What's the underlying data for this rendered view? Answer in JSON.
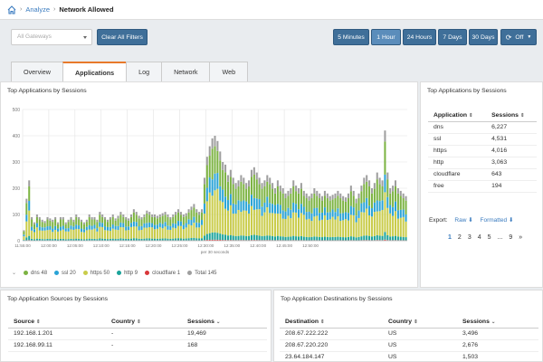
{
  "breadcrumb": {
    "items": [
      "Analyze"
    ],
    "current": "Network Allowed"
  },
  "filters": {
    "gateway_placeholder": "All Gateways",
    "clear_label": "Clear All Filters",
    "time_ranges": [
      "5 Minutes",
      "1 Hour",
      "24 Hours",
      "7 Days",
      "30 Days"
    ],
    "active_range": "1 Hour",
    "refresh_label": "Off"
  },
  "tabs": [
    "Overview",
    "Applications",
    "Log",
    "Network",
    "Web"
  ],
  "active_tab": "Applications",
  "colors": {
    "dns": "#7cb342",
    "ssl": "#29a3d6",
    "https": "#c9cc4a",
    "http": "#1aa39a",
    "cloudflare": "#d9373a",
    "total": "#9e9e9e",
    "accent": "#3f6f99",
    "tab_accent": "#e8792b"
  },
  "chart": {
    "title": "Top Applications by Sessions",
    "x_caption": "per 30 seconds",
    "legend": [
      {
        "key": "dns",
        "label": "dns 48"
      },
      {
        "key": "ssl",
        "label": "ssl 20"
      },
      {
        "key": "https",
        "label": "https 50"
      },
      {
        "key": "http",
        "label": "http 9"
      },
      {
        "key": "cloudflare",
        "label": "cloudflare 1"
      },
      {
        "key": "total",
        "label": "Total 145"
      }
    ]
  },
  "chart_data": {
    "type": "bar",
    "stacked": true,
    "ylim": [
      0,
      500
    ],
    "yticks": [
      0,
      100,
      200,
      300,
      400,
      500
    ],
    "xticks": [
      "11:55:00",
      "12:00:00",
      "12:05:00",
      "12:10:00",
      "12:15:00",
      "12:20:00",
      "12:25:00",
      "12:30:00",
      "12:35:00",
      "12:40:00",
      "12:45:00",
      "12:50:00"
    ],
    "x_start": "11:55:00",
    "interval_seconds": 30,
    "totals": [
      40,
      160,
      230,
      90,
      70,
      100,
      90,
      80,
      75,
      90,
      85,
      80,
      90,
      70,
      90,
      90,
      70,
      80,
      90,
      80,
      100,
      90,
      80,
      70,
      80,
      100,
      90,
      90,
      80,
      110,
      100,
      90,
      80,
      90,
      100,
      85,
      95,
      110,
      100,
      90,
      85,
      100,
      120,
      110,
      95,
      90,
      100,
      115,
      110,
      100,
      100,
      95,
      100,
      105,
      110,
      100,
      90,
      100,
      110,
      120,
      110,
      100,
      105,
      120,
      130,
      140,
      120,
      110,
      120,
      240,
      320,
      360,
      390,
      400,
      380,
      340,
      300,
      290,
      250,
      270,
      240,
      220,
      230,
      250,
      240,
      220,
      230,
      270,
      280,
      260,
      240,
      220,
      230,
      250,
      240,
      220,
      200,
      230,
      210,
      200,
      180,
      190,
      200,
      230,
      210,
      200,
      220,
      190,
      180,
      170,
      180,
      200,
      190,
      180,
      170,
      190,
      180,
      170,
      175,
      180,
      190,
      180,
      170,
      165,
      180,
      210,
      190,
      160,
      180,
      210,
      240,
      250,
      230,
      200,
      220,
      260,
      240,
      230,
      420,
      260,
      200,
      210,
      230,
      200,
      190,
      180,
      170
    ]
  },
  "apps_table": {
    "title": "Top Applications by Sessions",
    "headers": [
      "Application",
      "Sessions"
    ],
    "rows": [
      [
        "dns",
        "6,227"
      ],
      [
        "ssl",
        "4,531"
      ],
      [
        "https",
        "4,016"
      ],
      [
        "http",
        "3,063"
      ],
      [
        "cloudflare",
        "643"
      ],
      [
        "free",
        "194"
      ]
    ],
    "export_label": "Export:",
    "raw_label": "Raw",
    "formatted_label": "Formatted",
    "pages": [
      "1",
      "2",
      "3",
      "4",
      "5",
      "...",
      "9",
      "»"
    ]
  },
  "sources": {
    "title": "Top Application Sources by Sessions",
    "headers": [
      "Source",
      "Country",
      "Sessions"
    ],
    "rows": [
      [
        "192.168.1.201",
        "-",
        "19,469"
      ],
      [
        "192.168.99.11",
        "-",
        "168"
      ]
    ]
  },
  "destinations": {
    "title": "Top Application Destinations by Sessions",
    "headers": [
      "Destination",
      "Country",
      "Sessions"
    ],
    "rows": [
      [
        "208.67.222.222",
        "US",
        "3,496"
      ],
      [
        "208.67.220.220",
        "US",
        "2,676"
      ],
      [
        "23.64.184.147",
        "US",
        "1,503"
      ]
    ]
  }
}
